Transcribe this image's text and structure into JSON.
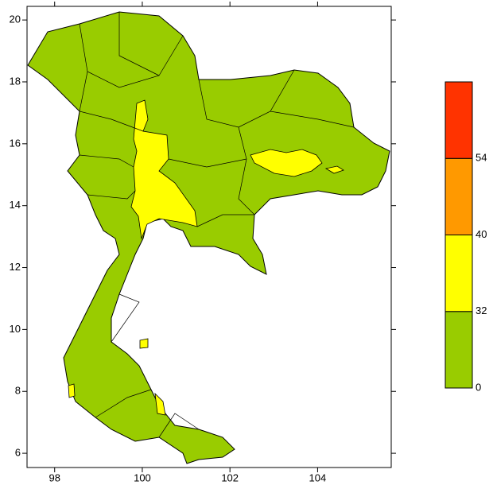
{
  "map": {
    "xlim": [
      97.37,
      105.68
    ],
    "ylim": [
      5.54,
      20.44
    ],
    "xticks": [
      98,
      100,
      102,
      104
    ],
    "yticks": [
      6,
      8,
      10,
      12,
      14,
      16,
      18,
      20
    ],
    "colorbar": {
      "levels": [
        0,
        32,
        40,
        54
      ],
      "colors": [
        "#99cc00",
        "#ffff00",
        "#ff9900",
        "#ff3300"
      ]
    }
  }
}
